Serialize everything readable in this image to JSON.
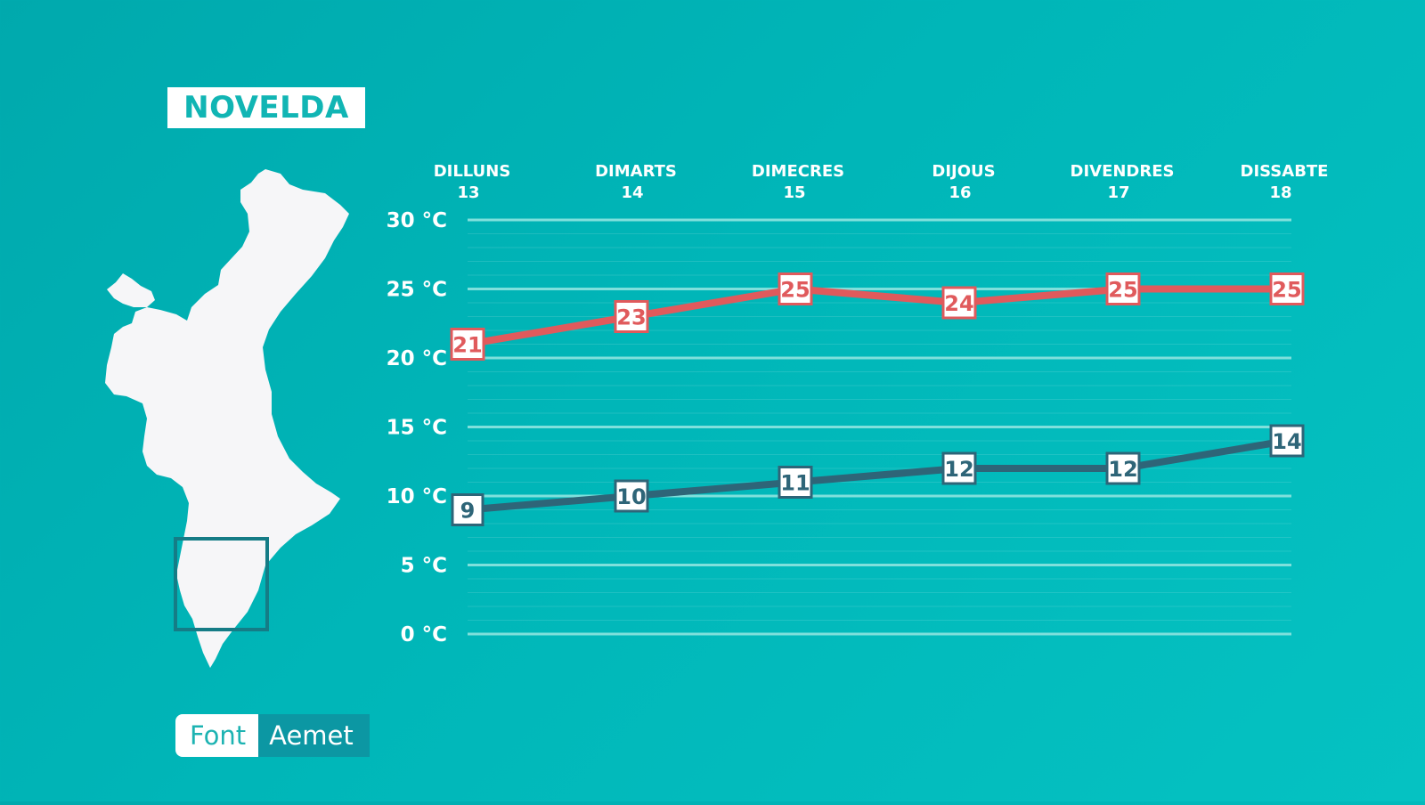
{
  "title": "NOVELDA",
  "source": {
    "label": "Font",
    "value": "Aemet"
  },
  "map": {
    "name": "Comunitat Valenciana"
  },
  "colors": {
    "max_series": "#e05a5c",
    "min_series": "#2e6578",
    "background": "#00b3b5",
    "grid": "#7fe0dc"
  },
  "chart_data": {
    "type": "line",
    "categories": [
      {
        "day": "DILLUNS",
        "date": "13"
      },
      {
        "day": "DIMARTS",
        "date": "14"
      },
      {
        "day": "DIMECRES",
        "date": "15"
      },
      {
        "day": "DIJOUS",
        "date": "16"
      },
      {
        "day": "DIVENDRES",
        "date": "17"
      },
      {
        "day": "DISSABTE",
        "date": "18"
      }
    ],
    "yticks": [
      {
        "value": 30,
        "label": "30 °C"
      },
      {
        "value": 25,
        "label": "25 °C"
      },
      {
        "value": 20,
        "label": "20 °C"
      },
      {
        "value": 15,
        "label": "15 °C"
      },
      {
        "value": 10,
        "label": "10 °C"
      },
      {
        "value": 5,
        "label": "5 °C"
      },
      {
        "value": 0,
        "label": "0 °C"
      }
    ],
    "ylim": [
      0,
      30
    ],
    "grid": true,
    "series": [
      {
        "values": [
          21,
          23,
          25,
          24,
          25,
          25
        ],
        "color": "#e05a5c"
      },
      {
        "values": [
          9,
          10,
          11,
          12,
          12,
          14
        ],
        "color": "#2e6578"
      }
    ]
  }
}
